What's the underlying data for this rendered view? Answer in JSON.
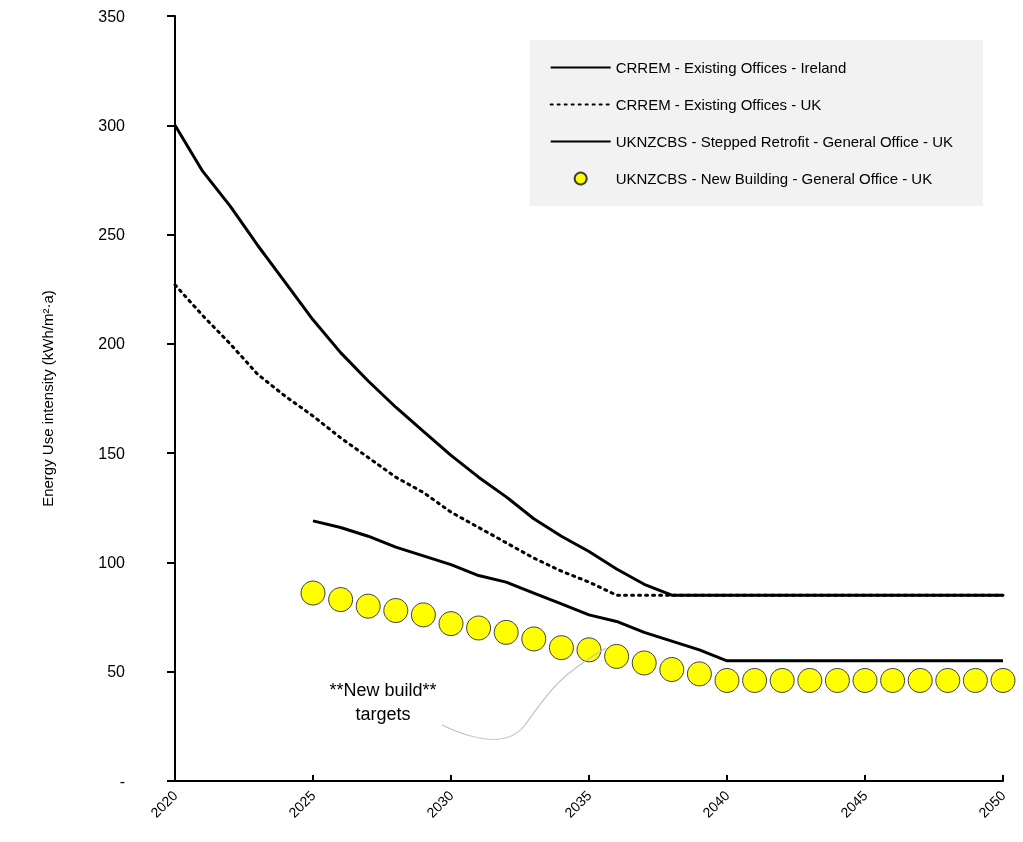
{
  "chart_data": {
    "type": "line",
    "ylabel": "Energy Use intensity (kWh/m²·a)",
    "x": [
      2020,
      2021,
      2022,
      2023,
      2024,
      2025,
      2026,
      2027,
      2028,
      2029,
      2030,
      2031,
      2032,
      2033,
      2034,
      2035,
      2036,
      2037,
      2038,
      2039,
      2040,
      2041,
      2042,
      2043,
      2044,
      2045,
      2046,
      2047,
      2048,
      2049,
      2050
    ],
    "series": [
      {
        "name": "CRREM - Existing Offices - Ireland",
        "color": "#000000",
        "line_style": "solid",
        "values": [
          300,
          279,
          263,
          245,
          228,
          211,
          196,
          183,
          171,
          160,
          149,
          139,
          130,
          120,
          112,
          105,
          97,
          90,
          85,
          85,
          85,
          85,
          85,
          85,
          85,
          85,
          85,
          85,
          85,
          85,
          85
        ]
      },
      {
        "name": "CRREM - Existing Offices - UK",
        "color": "#000000",
        "line_style": "dotted",
        "values": [
          227,
          213,
          200,
          186,
          176,
          167,
          157,
          148,
          139,
          132,
          123,
          116,
          109,
          102,
          96,
          91,
          85,
          85,
          85,
          85,
          85,
          85,
          85,
          85,
          85,
          85,
          85,
          85,
          85,
          85,
          85
        ]
      },
      {
        "name": "UKNZCBS - Stepped Retrofit - General Office - UK",
        "color": "#000000",
        "line_style": "solid",
        "values": [
          null,
          null,
          null,
          null,
          null,
          119,
          116,
          112,
          107,
          103,
          99,
          94,
          91,
          86,
          81,
          76,
          73,
          68,
          64,
          60,
          55,
          55,
          55,
          55,
          55,
          55,
          55,
          55,
          55,
          55,
          55
        ]
      },
      {
        "name": "UKNZCBS - New Building - General Office - UK",
        "type": "scatter",
        "marker": "circle",
        "color": "#ffff00",
        "values": [
          null,
          null,
          null,
          null,
          null,
          86,
          83,
          80,
          78,
          76,
          72,
          70,
          68,
          65,
          61,
          60,
          57,
          54,
          51,
          49,
          46,
          46,
          46,
          46,
          46,
          46,
          46,
          46,
          46,
          46,
          46
        ]
      }
    ],
    "xlim": [
      2020,
      2050
    ],
    "xticks": [
      2020,
      2025,
      2030,
      2035,
      2040,
      2045,
      2050
    ],
    "ylim": [
      0,
      350
    ],
    "yticks": [
      {
        "value": 0,
        "label": "-"
      },
      50,
      100,
      150,
      200,
      250,
      300,
      350
    ],
    "grid": false,
    "legend": "top right",
    "annotations": [
      "**New build**\ntargets"
    ]
  }
}
